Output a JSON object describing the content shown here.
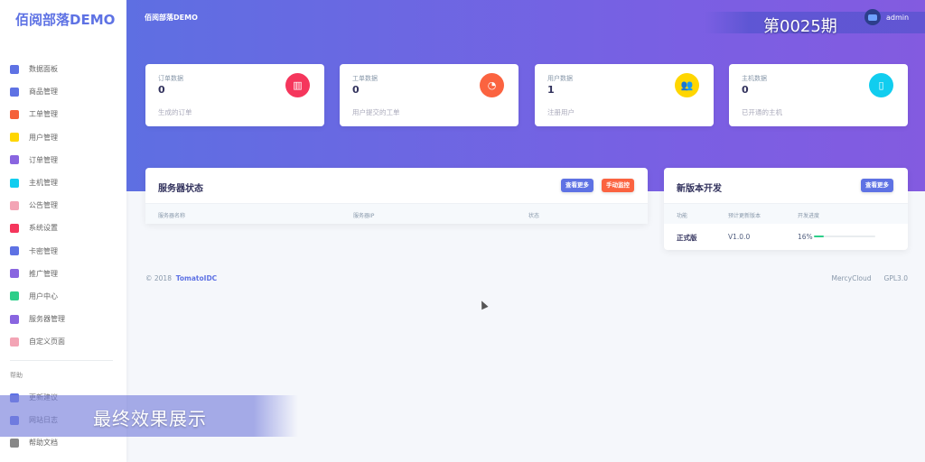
{
  "brand": "佰阅部落DEMO",
  "header": {
    "title": "佰阅部落DEMO",
    "user": "admin"
  },
  "overlay": {
    "issue": "第0025期",
    "caption": "最终效果展示"
  },
  "sidebar": {
    "items": [
      {
        "label": "数据面板",
        "icon": "monitor-icon",
        "color": "#5e72e4"
      },
      {
        "label": "商品管理",
        "icon": "planet-icon",
        "color": "#5e72e4"
      },
      {
        "label": "工单管理",
        "icon": "pin-icon",
        "color": "#f5603a"
      },
      {
        "label": "用户管理",
        "icon": "user-icon",
        "color": "#ffd600"
      },
      {
        "label": "订单管理",
        "icon": "document-icon",
        "color": "#8965e0"
      },
      {
        "label": "主机管理",
        "icon": "browser-icon",
        "color": "#11cdef"
      },
      {
        "label": "公告管理",
        "icon": "bell-icon",
        "color": "#f3a4b5"
      },
      {
        "label": "系统设置",
        "icon": "gear-icon",
        "color": "#f5365c"
      },
      {
        "label": "卡密管理",
        "icon": "card-icon",
        "color": "#5e72e4"
      },
      {
        "label": "推广管理",
        "icon": "copy-icon",
        "color": "#8965e0"
      },
      {
        "label": "用户中心",
        "icon": "chat-icon",
        "color": "#2dce89"
      },
      {
        "label": "服务器管理",
        "icon": "chart-icon",
        "color": "#8965e0"
      },
      {
        "label": "自定义页面",
        "icon": "settings-icon",
        "color": "#f3a4b5"
      }
    ],
    "help_label": "帮助",
    "help_items": [
      {
        "label": "更新建议",
        "icon": "spaceship-icon",
        "color": "#5e72e4"
      },
      {
        "label": "网站日志",
        "icon": "books-icon",
        "color": "#5e72e4"
      },
      {
        "label": "帮助文档",
        "icon": "doc-icon",
        "color": "#888888"
      }
    ]
  },
  "stats": [
    {
      "label": "订单数据",
      "value": "0",
      "sub": "生成的订单",
      "icon": "chart-bar-icon",
      "color": "#f5365c"
    },
    {
      "label": "工单数据",
      "value": "0",
      "sub": "用户提交的工单",
      "icon": "chart-pie-icon",
      "color": "#fb6340"
    },
    {
      "label": "用户数据",
      "value": "1",
      "sub": "注册用户",
      "icon": "users-icon",
      "color": "#ffd600"
    },
    {
      "label": "主机数据",
      "value": "0",
      "sub": "已开通的主机",
      "icon": "building-icon",
      "color": "#11cdef"
    }
  ],
  "server_panel": {
    "title": "服务器状态",
    "more": "查看更多",
    "monitor": "手动监控",
    "columns": [
      "服务器名称",
      "服务器IP",
      "状态"
    ]
  },
  "version_panel": {
    "title": "新版本开发",
    "more": "查看更多",
    "columns": [
      "功能",
      "预计更新版本",
      "开发进度"
    ],
    "rows": [
      {
        "feature": "正式版",
        "version": "V1.0.0",
        "progress_label": "16%",
        "progress": 16
      }
    ]
  },
  "footer": {
    "copyright": "© 2018",
    "company": "TomatoIDC",
    "links": [
      "MercyCloud",
      "GPL3.0"
    ]
  }
}
